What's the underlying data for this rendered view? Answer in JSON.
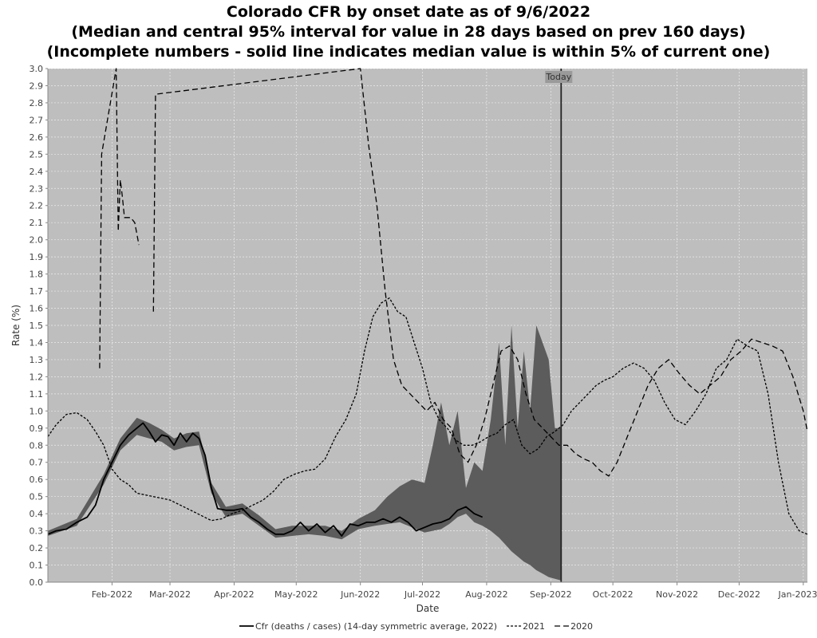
{
  "chart_data": {
    "type": "line",
    "title": [
      "Colorado CFR by onset date as of 9/6/2022",
      "(Median and central 95% interval for value in 28 days based on prev 160 days)",
      "(Incomplete numbers - solid line indicates median value is within 5% of current one)"
    ],
    "xlabel": "Date",
    "ylabel": "Rate (%)",
    "ylim": [
      0,
      3.0
    ],
    "xlim": [
      "2022-01-01",
      "2023-01-03"
    ],
    "grid": true,
    "legend_position": "bottom",
    "today_label": "Today",
    "today_date": "2022-09-06",
    "y_ticks": [
      "0.0",
      "0.1",
      "0.2",
      "0.3",
      "0.4",
      "0.5",
      "0.6",
      "0.7",
      "0.8",
      "0.9",
      "1.0",
      "1.1",
      "1.2",
      "1.3",
      "1.4",
      "1.5",
      "1.6",
      "1.7",
      "1.8",
      "1.9",
      "2.0",
      "2.1",
      "2.2",
      "2.3",
      "2.4",
      "2.5",
      "2.6",
      "2.7",
      "2.8",
      "2.9",
      "3.0"
    ],
    "x_ticks": [
      {
        "date": "2022-02-01",
        "label": "Feb-2022"
      },
      {
        "date": "2022-03-01",
        "label": "Mar-2022"
      },
      {
        "date": "2022-04-01",
        "label": "Apr-2022"
      },
      {
        "date": "2022-05-01",
        "label": "May-2022"
      },
      {
        "date": "2022-06-01",
        "label": "Jun-2022"
      },
      {
        "date": "2022-07-01",
        "label": "Jul-2022"
      },
      {
        "date": "2022-08-01",
        "label": "Aug-2022"
      },
      {
        "date": "2022-09-01",
        "label": "Sep-2022"
      },
      {
        "date": "2022-10-01",
        "label": "Oct-2022"
      },
      {
        "date": "2022-11-01",
        "label": "Nov-2022"
      },
      {
        "date": "2022-12-01",
        "label": "Dec-2022"
      },
      {
        "date": "2023-01-01",
        "label": "Jan-2023"
      }
    ],
    "colors": {
      "plot_bg": "#bebebe",
      "band": "#5c5c5c",
      "band_light": "#7e7e7e",
      "line": "#000000"
    },
    "series": [
      {
        "name": "Cfr (deaths / cases) (14-day symmetric average, 2022)",
        "style": "solid",
        "x": [
          "2022-01-01",
          "2022-01-05",
          "2022-01-10",
          "2022-01-15",
          "2022-01-20",
          "2022-01-24",
          "2022-01-28",
          "2022-02-01",
          "2022-02-05",
          "2022-02-09",
          "2022-02-13",
          "2022-02-16",
          "2022-02-19",
          "2022-02-22",
          "2022-02-25",
          "2022-02-28",
          "2022-03-03",
          "2022-03-06",
          "2022-03-09",
          "2022-03-12",
          "2022-03-15",
          "2022-03-18",
          "2022-03-21",
          "2022-03-24",
          "2022-03-28",
          "2022-04-01",
          "2022-04-05",
          "2022-04-09",
          "2022-04-13",
          "2022-04-17",
          "2022-04-21",
          "2022-04-25",
          "2022-04-29",
          "2022-05-03",
          "2022-05-07",
          "2022-05-11",
          "2022-05-15",
          "2022-05-19",
          "2022-05-23",
          "2022-05-27",
          "2022-05-31",
          "2022-06-04",
          "2022-06-08",
          "2022-06-12",
          "2022-06-16",
          "2022-06-20",
          "2022-06-24",
          "2022-06-28",
          "2022-07-02",
          "2022-07-06",
          "2022-07-10",
          "2022-07-14",
          "2022-07-18",
          "2022-07-22",
          "2022-07-26",
          "2022-07-30"
        ],
        "values": [
          0.28,
          0.3,
          0.31,
          0.35,
          0.38,
          0.45,
          0.6,
          0.7,
          0.8,
          0.86,
          0.9,
          0.93,
          0.88,
          0.82,
          0.86,
          0.85,
          0.8,
          0.87,
          0.82,
          0.87,
          0.84,
          0.74,
          0.55,
          0.43,
          0.42,
          0.42,
          0.43,
          0.38,
          0.35,
          0.31,
          0.28,
          0.28,
          0.3,
          0.35,
          0.3,
          0.34,
          0.29,
          0.33,
          0.27,
          0.34,
          0.33,
          0.35,
          0.35,
          0.37,
          0.35,
          0.38,
          0.35,
          0.3,
          0.32,
          0.34,
          0.35,
          0.37,
          0.42,
          0.44,
          0.4,
          0.38
        ]
      },
      {
        "name": "2021",
        "style": "dotted",
        "x": [
          "2022-01-01",
          "2022-01-05",
          "2022-01-10",
          "2022-01-15",
          "2022-01-20",
          "2022-01-24",
          "2022-01-28",
          "2022-02-01",
          "2022-02-05",
          "2022-02-09",
          "2022-02-13",
          "2022-02-17",
          "2022-02-21",
          "2022-02-25",
          "2022-03-01",
          "2022-03-06",
          "2022-03-11",
          "2022-03-16",
          "2022-03-21",
          "2022-03-26",
          "2022-03-31",
          "2022-04-05",
          "2022-04-10",
          "2022-04-15",
          "2022-04-20",
          "2022-04-25",
          "2022-04-30",
          "2022-05-05",
          "2022-05-10",
          "2022-05-15",
          "2022-05-20",
          "2022-05-25",
          "2022-05-30",
          "2022-06-03",
          "2022-06-07",
          "2022-06-11",
          "2022-06-15",
          "2022-06-19",
          "2022-06-23",
          "2022-06-27",
          "2022-07-01",
          "2022-07-05",
          "2022-07-09",
          "2022-07-13",
          "2022-07-17",
          "2022-07-21",
          "2022-07-25",
          "2022-07-29",
          "2022-08-02",
          "2022-08-06",
          "2022-08-10",
          "2022-08-14",
          "2022-08-18",
          "2022-08-22",
          "2022-08-26",
          "2022-08-30",
          "2022-09-03",
          "2022-09-07",
          "2022-09-11",
          "2022-09-15",
          "2022-09-19",
          "2022-09-23",
          "2022-09-27",
          "2022-10-01",
          "2022-10-06",
          "2022-10-11",
          "2022-10-16",
          "2022-10-21",
          "2022-10-26",
          "2022-10-31",
          "2022-11-05",
          "2022-11-10",
          "2022-11-15",
          "2022-11-20",
          "2022-11-25",
          "2022-11-30",
          "2022-12-05",
          "2022-12-10",
          "2022-12-15",
          "2022-12-20",
          "2022-12-25",
          "2022-12-30",
          "2023-01-03"
        ],
        "values": [
          0.85,
          0.92,
          0.98,
          0.99,
          0.95,
          0.88,
          0.8,
          0.66,
          0.6,
          0.57,
          0.52,
          0.51,
          0.5,
          0.49,
          0.48,
          0.45,
          0.42,
          0.39,
          0.36,
          0.37,
          0.4,
          0.42,
          0.45,
          0.48,
          0.53,
          0.6,
          0.63,
          0.65,
          0.66,
          0.72,
          0.85,
          0.95,
          1.1,
          1.35,
          1.55,
          1.63,
          1.66,
          1.58,
          1.55,
          1.4,
          1.25,
          1.05,
          0.95,
          0.9,
          0.83,
          0.8,
          0.8,
          0.82,
          0.85,
          0.87,
          0.92,
          0.95,
          0.8,
          0.75,
          0.78,
          0.85,
          0.88,
          0.92,
          1.0,
          1.05,
          1.1,
          1.15,
          1.18,
          1.2,
          1.25,
          1.28,
          1.25,
          1.18,
          1.05,
          0.95,
          0.92,
          1.0,
          1.1,
          1.25,
          1.3,
          1.42,
          1.38,
          1.35,
          1.1,
          0.7,
          0.4,
          0.3,
          0.28
        ]
      },
      {
        "name": "2020",
        "style": "dashed",
        "x": [
          "2022-01-26",
          "2022-01-27",
          "2022-02-03",
          "2022-02-04",
          "2022-02-05",
          "2022-02-06",
          "2022-02-07",
          "2022-02-08",
          "2022-02-10",
          "2022-02-12",
          "2022-02-14",
          "2022-02-15",
          "2022-02-21",
          "2022-02-22",
          "2022-06-01",
          "2022-06-05",
          "2022-06-09",
          "2022-06-13",
          "2022-06-17",
          "2022-06-21",
          "2022-06-25",
          "2022-06-29",
          "2022-07-03",
          "2022-07-07",
          "2022-07-11",
          "2022-07-15",
          "2022-07-19",
          "2022-07-23",
          "2022-07-27",
          "2022-07-31",
          "2022-08-04",
          "2022-08-08",
          "2022-08-12",
          "2022-08-16",
          "2022-08-20",
          "2022-08-24",
          "2022-08-28",
          "2022-09-01",
          "2022-09-05",
          "2022-09-09",
          "2022-09-13",
          "2022-09-17",
          "2022-09-21",
          "2022-09-25",
          "2022-09-29",
          "2022-10-03",
          "2022-10-08",
          "2022-10-13",
          "2022-10-18",
          "2022-10-23",
          "2022-10-28",
          "2022-11-02",
          "2022-11-07",
          "2022-11-12",
          "2022-11-17",
          "2022-11-22",
          "2022-11-27",
          "2022-12-02",
          "2022-12-07",
          "2022-12-12",
          "2022-12-17",
          "2022-12-22",
          "2022-12-27",
          "2023-01-01",
          "2023-01-03"
        ],
        "values": [
          1.25,
          2.5,
          3.0,
          2.05,
          2.35,
          2.25,
          2.13,
          2.13,
          2.13,
          2.1,
          1.97,
          null,
          1.58,
          2.85,
          3.0,
          2.55,
          2.2,
          1.7,
          1.3,
          1.15,
          1.1,
          1.05,
          1.0,
          1.05,
          0.95,
          0.9,
          0.75,
          0.7,
          0.8,
          0.95,
          1.15,
          1.35,
          1.38,
          1.3,
          1.1,
          0.95,
          0.9,
          0.85,
          0.8,
          0.8,
          0.75,
          0.72,
          0.7,
          0.65,
          0.62,
          0.7,
          0.85,
          1.0,
          1.15,
          1.25,
          1.3,
          1.22,
          1.15,
          1.1,
          1.15,
          1.2,
          1.3,
          1.35,
          1.42,
          1.4,
          1.38,
          1.35,
          1.2,
          1.0,
          0.88
        ]
      }
    ],
    "band": {
      "x": [
        "2022-01-01",
        "2022-01-15",
        "2022-01-28",
        "2022-02-05",
        "2022-02-13",
        "2022-02-19",
        "2022-02-25",
        "2022-03-03",
        "2022-03-09",
        "2022-03-15",
        "2022-03-21",
        "2022-03-28",
        "2022-04-05",
        "2022-04-13",
        "2022-04-21",
        "2022-04-29",
        "2022-05-07",
        "2022-05-15",
        "2022-05-23",
        "2022-05-31",
        "2022-06-08",
        "2022-06-14",
        "2022-06-20",
        "2022-06-26",
        "2022-07-02",
        "2022-07-06",
        "2022-07-10",
        "2022-07-14",
        "2022-07-18",
        "2022-07-22",
        "2022-07-26",
        "2022-07-30",
        "2022-08-03",
        "2022-08-07",
        "2022-08-10",
        "2022-08-13",
        "2022-08-16",
        "2022-08-19",
        "2022-08-22",
        "2022-08-25",
        "2022-08-28",
        "2022-08-31",
        "2022-09-03",
        "2022-09-06"
      ],
      "lower": [
        0.27,
        0.33,
        0.57,
        0.77,
        0.86,
        0.84,
        0.82,
        0.77,
        0.79,
        0.8,
        0.52,
        0.38,
        0.4,
        0.33,
        0.26,
        0.27,
        0.28,
        0.27,
        0.25,
        0.31,
        0.33,
        0.34,
        0.35,
        0.32,
        0.29,
        0.3,
        0.31,
        0.34,
        0.38,
        0.4,
        0.35,
        0.33,
        0.3,
        0.26,
        0.22,
        0.18,
        0.15,
        0.12,
        0.1,
        0.07,
        0.05,
        0.03,
        0.02,
        0.01
      ],
      "upper": [
        0.3,
        0.37,
        0.63,
        0.84,
        0.96,
        0.93,
        0.89,
        0.84,
        0.87,
        0.88,
        0.58,
        0.44,
        0.46,
        0.39,
        0.31,
        0.33,
        0.33,
        0.33,
        0.3,
        0.37,
        0.42,
        0.5,
        0.56,
        0.6,
        0.58,
        0.8,
        1.05,
        0.8,
        1.0,
        0.55,
        0.7,
        0.65,
        0.95,
        1.4,
        0.8,
        1.5,
        0.9,
        1.35,
        1.0,
        1.5,
        1.4,
        1.3,
        0.9,
        0.9
      ]
    }
  }
}
